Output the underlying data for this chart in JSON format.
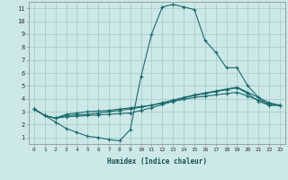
{
  "xlabel": "Humidex (Indice chaleur)",
  "xlim": [
    -0.5,
    23.5
  ],
  "ylim": [
    0.5,
    11.5
  ],
  "xticks": [
    0,
    1,
    2,
    3,
    4,
    5,
    6,
    7,
    8,
    9,
    10,
    11,
    12,
    13,
    14,
    15,
    16,
    17,
    18,
    19,
    20,
    21,
    22,
    23
  ],
  "yticks": [
    1,
    2,
    3,
    4,
    5,
    6,
    7,
    8,
    9,
    10,
    11
  ],
  "bg_color": "#cce8e8",
  "grid_color": "#aac8c8",
  "line_color": "#1a6b6b",
  "line1_x": [
    0,
    1,
    2,
    3,
    4,
    5,
    6,
    7,
    8,
    9,
    10,
    11,
    12,
    13,
    14,
    15,
    16,
    17,
    18,
    19,
    20,
    21,
    22,
    23
  ],
  "line1_y": [
    3.2,
    2.7,
    2.2,
    1.7,
    1.4,
    1.1,
    1.0,
    0.85,
    0.75,
    1.6,
    5.7,
    9.0,
    11.1,
    11.3,
    11.1,
    10.9,
    8.5,
    7.6,
    6.4,
    6.4,
    5.0,
    4.1,
    3.5,
    3.5
  ],
  "line2_x": [
    0,
    1,
    2,
    3,
    4,
    5,
    6,
    7,
    8,
    9,
    10,
    11,
    12,
    13,
    14,
    15,
    16,
    17,
    18,
    19,
    20,
    21,
    22,
    23
  ],
  "line2_y": [
    3.2,
    2.7,
    2.5,
    2.6,
    2.65,
    2.7,
    2.75,
    2.8,
    2.85,
    2.9,
    3.1,
    3.3,
    3.55,
    3.8,
    4.05,
    4.25,
    4.4,
    4.55,
    4.7,
    4.85,
    4.4,
    3.8,
    3.5,
    3.5
  ],
  "line3_x": [
    0,
    1,
    2,
    3,
    4,
    5,
    6,
    7,
    8,
    9,
    10,
    11,
    12,
    13,
    14,
    15,
    16,
    17,
    18,
    19,
    20,
    21,
    22,
    23
  ],
  "line3_y": [
    3.2,
    2.7,
    2.5,
    2.7,
    2.75,
    2.8,
    2.9,
    3.0,
    3.1,
    3.2,
    3.35,
    3.5,
    3.7,
    3.9,
    4.1,
    4.3,
    4.45,
    4.6,
    4.75,
    4.9,
    4.5,
    4.1,
    3.7,
    3.5
  ],
  "line4_x": [
    0,
    1,
    2,
    3,
    4,
    5,
    6,
    7,
    8,
    9,
    10,
    11,
    12,
    13,
    14,
    15,
    16,
    17,
    18,
    19,
    20,
    21,
    22,
    23
  ],
  "line4_y": [
    3.2,
    2.7,
    2.5,
    2.8,
    2.9,
    3.0,
    3.05,
    3.1,
    3.2,
    3.3,
    3.4,
    3.5,
    3.65,
    3.8,
    3.95,
    4.1,
    4.2,
    4.3,
    4.4,
    4.5,
    4.2,
    3.9,
    3.6,
    3.5
  ]
}
